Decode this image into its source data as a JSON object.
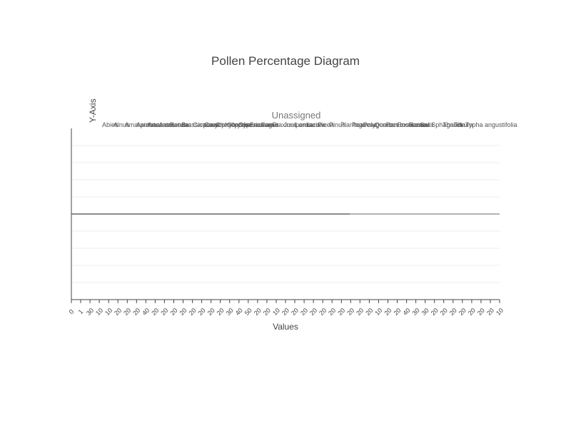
{
  "chart_data": {
    "type": "line",
    "title": "Pollen Percentage Diagram",
    "xlabel": "Values",
    "ylabel": "Y-Axis",
    "group_label": "Unassigned",
    "grid": true,
    "taxa": [
      "Abies",
      "Alnus",
      "Amaranthaceae",
      "Apiaceae",
      "Artemisia",
      "Asteraceae",
      "Betula",
      "Brassicaceae",
      "Carpinus",
      "Caryophyllaceae",
      "Chenopodiaceae",
      "Corylus",
      "Cyperaceae",
      "Ericaceae",
      "Fagus",
      "Fraxinus",
      "Juniperus",
      "Lamiaceae",
      "Larix",
      "Picea",
      "Pinus",
      "Plantago",
      "Poaceae",
      "Polygonum",
      "Quercus",
      "Ranunculaceae",
      "Rosaceae",
      "Rumex",
      "Salix",
      "Sphagnum",
      "Thalictrum",
      "Tilia",
      "Typha angustifolia"
    ],
    "tick_labels": [
      "0",
      "1",
      "30",
      "10",
      "10",
      "20",
      "20",
      "20",
      "40",
      "20",
      "20",
      "20",
      "20",
      "20",
      "20",
      "20",
      "20",
      "30",
      "40",
      "50",
      "20",
      "20",
      "10",
      "20",
      "20",
      "20",
      "20",
      "20",
      "20",
      "20",
      "20",
      "20",
      "20",
      "10",
      "20",
      "20",
      "40",
      "30",
      "30",
      "20",
      "20",
      "20",
      "20",
      "20",
      "20",
      "20",
      "10"
    ]
  }
}
